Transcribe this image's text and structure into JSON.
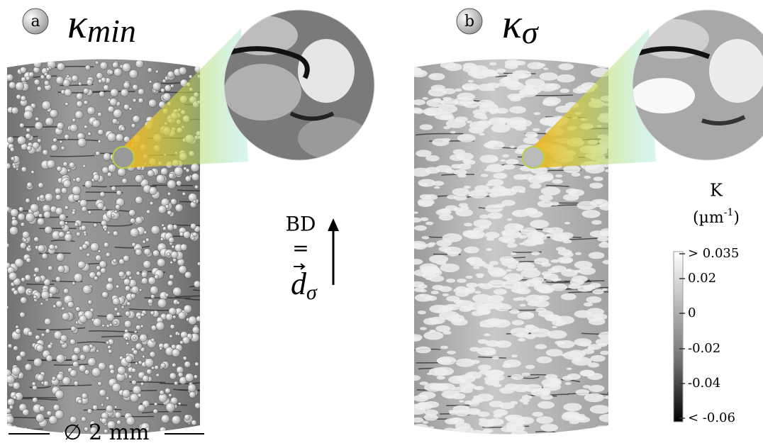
{
  "panels": [
    {
      "letter": "a",
      "symbol": "κ",
      "subscript": "min"
    },
    {
      "letter": "b",
      "symbol": "κ",
      "subscript": "σ"
    }
  ],
  "direction": {
    "label": "BD",
    "equals": "=",
    "vector": "d",
    "subscript": "σ"
  },
  "colorbar": {
    "title": "K",
    "unit": "(µm",
    "exponent": "-1",
    "unit_close": ")",
    "ticks": [
      "> 0.035",
      "0.02",
      "0",
      "-0.02",
      "-0.04",
      "< -0.06"
    ]
  },
  "scale": {
    "label": "∅ 2 mm"
  }
}
